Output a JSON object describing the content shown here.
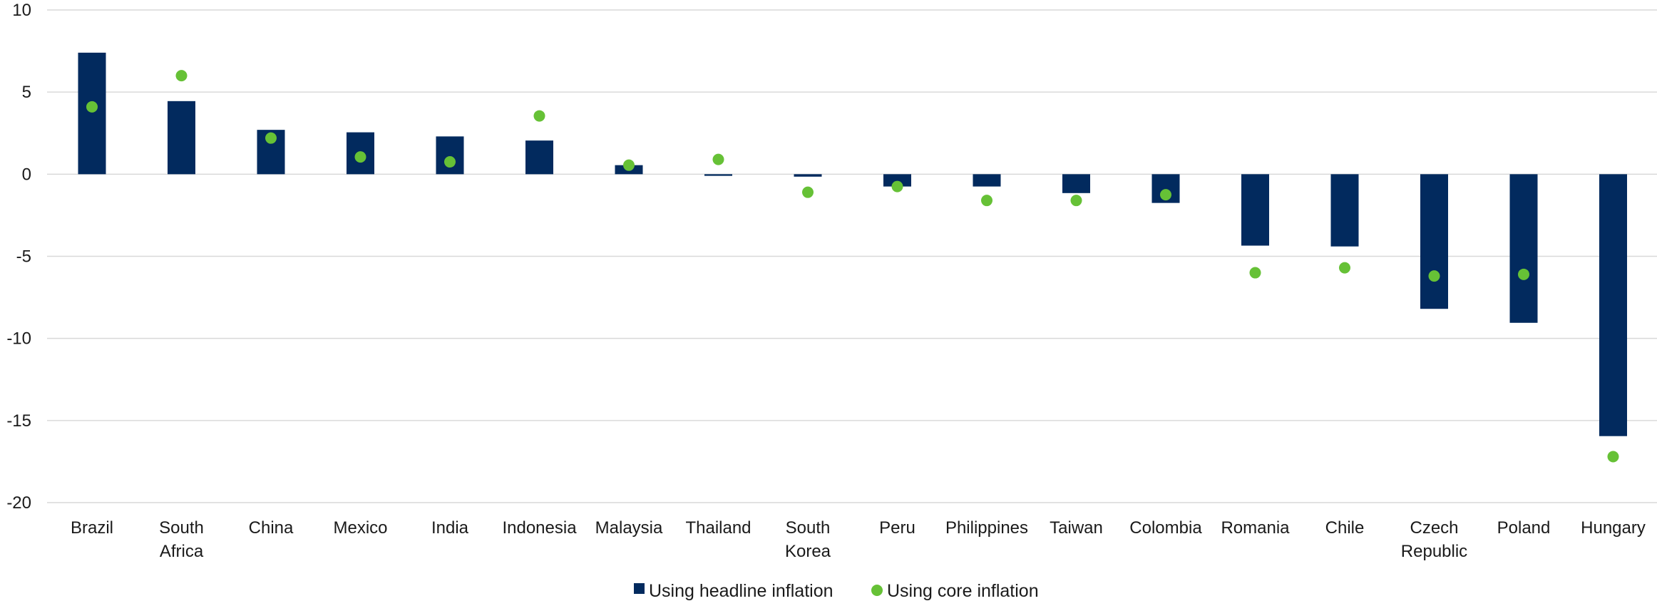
{
  "chart_data": {
    "type": "bar",
    "title": "",
    "xlabel": "",
    "ylabel": "",
    "ylim": [
      -20,
      10
    ],
    "yticks": [
      10,
      5,
      0,
      -5,
      -10,
      -15,
      -20
    ],
    "grid": true,
    "legend_position": "bottom",
    "categories": [
      [
        "Brazil"
      ],
      [
        "South",
        "Africa"
      ],
      [
        "China"
      ],
      [
        "Mexico"
      ],
      [
        "India"
      ],
      [
        "Indonesia"
      ],
      [
        "Malaysia"
      ],
      [
        "Thailand"
      ],
      [
        "South",
        "Korea"
      ],
      [
        "Peru"
      ],
      [
        "Philippines"
      ],
      [
        "Taiwan"
      ],
      [
        "Colombia"
      ],
      [
        "Romania"
      ],
      [
        "Chile"
      ],
      [
        "Czech",
        "Republic"
      ],
      [
        "Poland"
      ],
      [
        "Hungary"
      ]
    ],
    "series": [
      {
        "name": "Using headline inflation",
        "kind": "bar",
        "color": "#022a5e",
        "values": [
          7.4,
          4.45,
          2.7,
          2.55,
          2.3,
          2.05,
          0.55,
          -0.1,
          -0.15,
          -0.75,
          -0.75,
          -1.15,
          -1.75,
          -4.35,
          -4.4,
          -8.2,
          -9.05,
          -15.95
        ]
      },
      {
        "name": "Using core inflation",
        "kind": "dot",
        "color": "#66c136",
        "values": [
          4.1,
          6.0,
          2.2,
          1.05,
          0.75,
          3.55,
          0.55,
          0.9,
          -1.1,
          -0.75,
          -1.6,
          -1.6,
          -1.25,
          -6.0,
          -5.7,
          -6.2,
          -6.1,
          -17.2
        ]
      }
    ]
  }
}
